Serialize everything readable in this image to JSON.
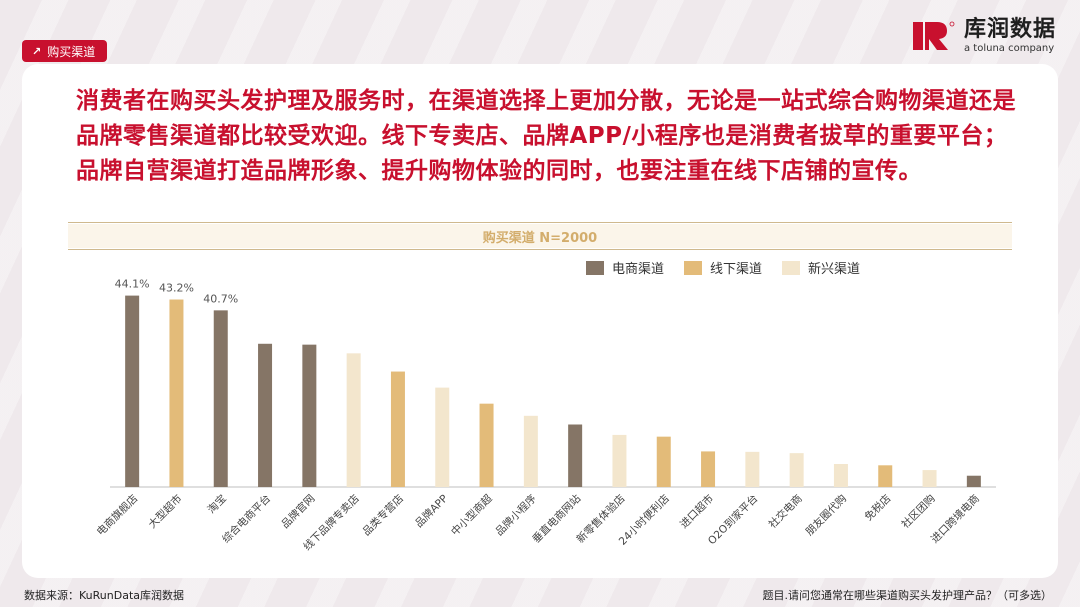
{
  "tag": {
    "label": "购买渠道"
  },
  "logo": {
    "cn": "库润数据",
    "en": "a toluna company"
  },
  "headline": "消费者在购买头发护理及服务时，在渠道选择上更加分散，无论是一站式综合购物渠道还是品牌零售渠道都比较受欢迎。线下专卖店、品牌APP/小程序也是消费者拔草的重要平台；品牌自营渠道打造品牌形象、提升购物体验的同时，也要注重在线下店铺的宣传。",
  "colors": {
    "ecommerce": "#857566",
    "offline": "#e3bb79",
    "emerging": "#f3e6cd",
    "accent": "#c8102e"
  },
  "chart_data": {
    "type": "bar",
    "title": "购买渠道 N=2000",
    "legend": [
      {
        "name": "电商渠道",
        "key": "ecommerce"
      },
      {
        "name": "线下渠道",
        "key": "offline"
      },
      {
        "name": "新兴渠道",
        "key": "emerging"
      }
    ],
    "legend_position": "top-right",
    "categories": [
      "电商旗舰店",
      "大型超市",
      "淘宝",
      "综合电商平台",
      "品牌官网",
      "线下品牌专卖店",
      "品类专营店",
      "品牌APP",
      "中小型商超",
      "品牌小程序",
      "垂直电商网站",
      "新零售体验店",
      "24小时便利店",
      "进口超市",
      "O2O到家平台",
      "社交电商",
      "朋友圈代购",
      "免税店",
      "社区团购",
      "进口跨境电商"
    ],
    "values": [
      44.1,
      43.2,
      40.7,
      33.0,
      32.8,
      30.8,
      26.6,
      22.9,
      19.2,
      16.4,
      14.4,
      12.0,
      11.6,
      8.2,
      8.1,
      7.8,
      5.3,
      5.0,
      3.9,
      2.6
    ],
    "groups": [
      "ecommerce",
      "offline",
      "ecommerce",
      "ecommerce",
      "ecommerce",
      "emerging",
      "offline",
      "emerging",
      "offline",
      "emerging",
      "ecommerce",
      "emerging",
      "offline",
      "offline",
      "emerging",
      "emerging",
      "emerging",
      "offline",
      "emerging",
      "ecommerce"
    ],
    "data_labels": [
      "44.1%",
      "43.2%",
      "40.7%",
      "",
      "",
      "",
      "",
      "",
      "",
      "",
      "",
      "",
      "",
      "",
      "",
      "",
      "",
      "",
      "",
      ""
    ],
    "ylim": [
      0,
      50
    ],
    "grid": false
  },
  "footer": {
    "source": "数据来源：KuRunData库润数据",
    "question": "题目.请问您通常在哪些渠道购买头发护理产品？（可多选）"
  }
}
